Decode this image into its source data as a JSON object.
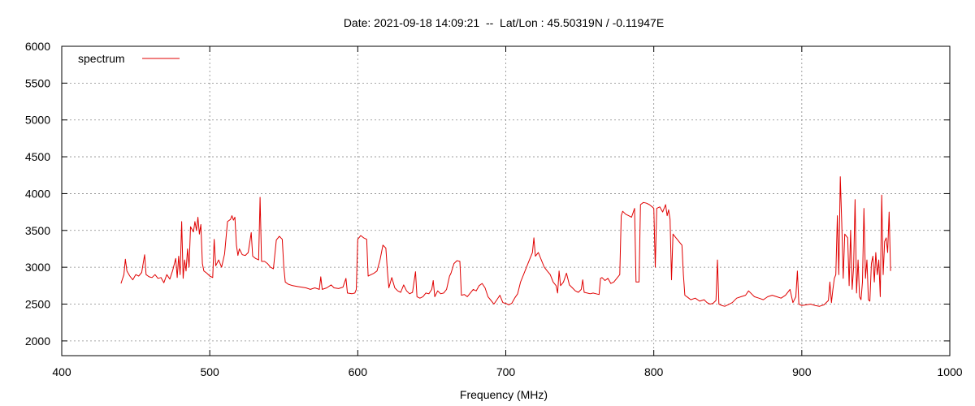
{
  "chart_data": {
    "type": "line",
    "title": "Date: 2021-09-18 14:09:21  --  Lat/Lon : 45.50319N / -0.11947E",
    "xlabel": "Frequency (MHz)",
    "ylabel": "",
    "xlim": [
      400,
      1000
    ],
    "ylim": [
      1800,
      6000
    ],
    "xticks": [
      400,
      500,
      600,
      700,
      800,
      900,
      1000
    ],
    "yticks": [
      2000,
      2500,
      3000,
      3500,
      4000,
      4500,
      5000,
      5500,
      6000
    ],
    "grid": true,
    "legend": "top-left",
    "series": [
      {
        "name": "spectrum",
        "color": "#e00000",
        "points": [
          [
            440,
            2780
          ],
          [
            442,
            2900
          ],
          [
            443,
            3110
          ],
          [
            444,
            2950
          ],
          [
            446,
            2880
          ],
          [
            448,
            2830
          ],
          [
            450,
            2900
          ],
          [
            452,
            2880
          ],
          [
            454,
            2930
          ],
          [
            456,
            3170
          ],
          [
            457,
            2900
          ],
          [
            459,
            2870
          ],
          [
            461,
            2860
          ],
          [
            463,
            2900
          ],
          [
            465,
            2850
          ],
          [
            467,
            2860
          ],
          [
            469,
            2790
          ],
          [
            471,
            2900
          ],
          [
            473,
            2840
          ],
          [
            475,
            2960
          ],
          [
            477,
            3120
          ],
          [
            478,
            2860
          ],
          [
            479,
            3150
          ],
          [
            480,
            2900
          ],
          [
            481,
            3620
          ],
          [
            482,
            2850
          ],
          [
            483,
            3100
          ],
          [
            484,
            2950
          ],
          [
            485,
            3250
          ],
          [
            486,
            3000
          ],
          [
            487,
            3550
          ],
          [
            489,
            3480
          ],
          [
            490,
            3620
          ],
          [
            491,
            3500
          ],
          [
            492,
            3680
          ],
          [
            493,
            3450
          ],
          [
            494,
            3580
          ],
          [
            495,
            3050
          ],
          [
            496,
            2950
          ],
          [
            498,
            2920
          ],
          [
            500,
            2880
          ],
          [
            502,
            2860
          ],
          [
            503,
            3380
          ],
          [
            504,
            3020
          ],
          [
            506,
            3100
          ],
          [
            508,
            3000
          ],
          [
            510,
            3180
          ],
          [
            511,
            3400
          ],
          [
            512,
            3620
          ],
          [
            514,
            3650
          ],
          [
            515,
            3700
          ],
          [
            516,
            3640
          ],
          [
            517,
            3680
          ],
          [
            518,
            3300
          ],
          [
            519,
            3160
          ],
          [
            520,
            3250
          ],
          [
            522,
            3170
          ],
          [
            524,
            3160
          ],
          [
            526,
            3200
          ],
          [
            528,
            3470
          ],
          [
            529,
            3150
          ],
          [
            531,
            3120
          ],
          [
            533,
            3100
          ],
          [
            534,
            3950
          ],
          [
            535,
            3080
          ],
          [
            537,
            3080
          ],
          [
            539,
            3050
          ],
          [
            541,
            3000
          ],
          [
            543,
            2980
          ],
          [
            545,
            3370
          ],
          [
            547,
            3420
          ],
          [
            549,
            3380
          ],
          [
            550,
            3000
          ],
          [
            551,
            2800
          ],
          [
            553,
            2770
          ],
          [
            556,
            2750
          ],
          [
            559,
            2740
          ],
          [
            562,
            2730
          ],
          [
            565,
            2720
          ],
          [
            568,
            2700
          ],
          [
            571,
            2720
          ],
          [
            574,
            2700
          ],
          [
            575,
            2870
          ],
          [
            576,
            2700
          ],
          [
            579,
            2720
          ],
          [
            582,
            2760
          ],
          [
            584,
            2720
          ],
          [
            587,
            2710
          ],
          [
            590,
            2730
          ],
          [
            592,
            2850
          ],
          [
            593,
            2650
          ],
          [
            596,
            2640
          ],
          [
            598,
            2650
          ],
          [
            599,
            2700
          ],
          [
            600,
            3380
          ],
          [
            602,
            3430
          ],
          [
            604,
            3400
          ],
          [
            606,
            3380
          ],
          [
            607,
            2880
          ],
          [
            609,
            2900
          ],
          [
            611,
            2920
          ],
          [
            613,
            2950
          ],
          [
            615,
            3100
          ],
          [
            616,
            3200
          ],
          [
            617,
            3300
          ],
          [
            619,
            3260
          ],
          [
            620,
            2950
          ],
          [
            621,
            2720
          ],
          [
            623,
            2860
          ],
          [
            625,
            2720
          ],
          [
            627,
            2680
          ],
          [
            629,
            2660
          ],
          [
            631,
            2760
          ],
          [
            633,
            2680
          ],
          [
            635,
            2640
          ],
          [
            637,
            2660
          ],
          [
            639,
            2940
          ],
          [
            640,
            2600
          ],
          [
            642,
            2580
          ],
          [
            644,
            2600
          ],
          [
            646,
            2650
          ],
          [
            648,
            2640
          ],
          [
            650,
            2700
          ],
          [
            651,
            2820
          ],
          [
            652,
            2600
          ],
          [
            654,
            2680
          ],
          [
            656,
            2640
          ],
          [
            658,
            2650
          ],
          [
            660,
            2700
          ],
          [
            662,
            2880
          ],
          [
            663,
            2920
          ],
          [
            665,
            3050
          ],
          [
            667,
            3090
          ],
          [
            669,
            3080
          ],
          [
            670,
            2620
          ],
          [
            672,
            2630
          ],
          [
            674,
            2600
          ],
          [
            676,
            2650
          ],
          [
            678,
            2700
          ],
          [
            680,
            2680
          ],
          [
            682,
            2750
          ],
          [
            684,
            2780
          ],
          [
            686,
            2720
          ],
          [
            688,
            2600
          ],
          [
            690,
            2550
          ],
          [
            692,
            2500
          ],
          [
            694,
            2560
          ],
          [
            696,
            2620
          ],
          [
            698,
            2520
          ],
          [
            700,
            2510
          ],
          [
            702,
            2490
          ],
          [
            704,
            2510
          ],
          [
            706,
            2580
          ],
          [
            708,
            2640
          ],
          [
            710,
            2800
          ],
          [
            712,
            2900
          ],
          [
            714,
            3000
          ],
          [
            716,
            3100
          ],
          [
            718,
            3200
          ],
          [
            719,
            3400
          ],
          [
            720,
            3150
          ],
          [
            722,
            3200
          ],
          [
            724,
            3100
          ],
          [
            726,
            3000
          ],
          [
            728,
            2950
          ],
          [
            730,
            2900
          ],
          [
            732,
            2800
          ],
          [
            734,
            2750
          ],
          [
            735,
            2650
          ],
          [
            736,
            2950
          ],
          [
            737,
            2750
          ],
          [
            739,
            2800
          ],
          [
            741,
            2920
          ],
          [
            743,
            2760
          ],
          [
            745,
            2720
          ],
          [
            747,
            2680
          ],
          [
            749,
            2660
          ],
          [
            751,
            2700
          ],
          [
            752,
            2830
          ],
          [
            753,
            2660
          ],
          [
            755,
            2650
          ],
          [
            757,
            2640
          ],
          [
            759,
            2650
          ],
          [
            761,
            2640
          ],
          [
            763,
            2630
          ],
          [
            764,
            2850
          ],
          [
            765,
            2860
          ],
          [
            767,
            2820
          ],
          [
            769,
            2850
          ],
          [
            771,
            2780
          ],
          [
            773,
            2800
          ],
          [
            775,
            2850
          ],
          [
            777,
            2900
          ],
          [
            778,
            3700
          ],
          [
            779,
            3760
          ],
          [
            781,
            3720
          ],
          [
            783,
            3700
          ],
          [
            785,
            3680
          ],
          [
            787,
            3800
          ],
          [
            788,
            2800
          ],
          [
            790,
            2800
          ],
          [
            791,
            3850
          ],
          [
            793,
            3880
          ],
          [
            795,
            3870
          ],
          [
            797,
            3850
          ],
          [
            799,
            3820
          ],
          [
            800,
            3800
          ],
          [
            801,
            3000
          ],
          [
            802,
            3800
          ],
          [
            804,
            3820
          ],
          [
            806,
            3750
          ],
          [
            808,
            3850
          ],
          [
            809,
            3700
          ],
          [
            810,
            3780
          ],
          [
            811,
            3650
          ],
          [
            812,
            2830
          ],
          [
            813,
            3450
          ],
          [
            815,
            3400
          ],
          [
            817,
            3350
          ],
          [
            819,
            3300
          ],
          [
            820,
            2900
          ],
          [
            821,
            2620
          ],
          [
            823,
            2590
          ],
          [
            825,
            2560
          ],
          [
            828,
            2580
          ],
          [
            831,
            2540
          ],
          [
            834,
            2560
          ],
          [
            836,
            2520
          ],
          [
            838,
            2500
          ],
          [
            840,
            2510
          ],
          [
            842,
            2550
          ],
          [
            843,
            3100
          ],
          [
            844,
            2500
          ],
          [
            846,
            2480
          ],
          [
            848,
            2470
          ],
          [
            850,
            2490
          ],
          [
            853,
            2520
          ],
          [
            856,
            2580
          ],
          [
            859,
            2600
          ],
          [
            862,
            2620
          ],
          [
            864,
            2680
          ],
          [
            866,
            2640
          ],
          [
            868,
            2600
          ],
          [
            871,
            2580
          ],
          [
            874,
            2560
          ],
          [
            877,
            2600
          ],
          [
            880,
            2620
          ],
          [
            883,
            2600
          ],
          [
            886,
            2580
          ],
          [
            889,
            2620
          ],
          [
            892,
            2700
          ],
          [
            894,
            2520
          ],
          [
            896,
            2600
          ],
          [
            897,
            2950
          ],
          [
            898,
            2500
          ],
          [
            900,
            2480
          ],
          [
            903,
            2490
          ],
          [
            906,
            2500
          ],
          [
            909,
            2480
          ],
          [
            912,
            2470
          ],
          [
            915,
            2490
          ],
          [
            918,
            2550
          ],
          [
            919,
            2800
          ],
          [
            920,
            2520
          ],
          [
            921,
            2700
          ],
          [
            922,
            2850
          ],
          [
            923,
            2900
          ],
          [
            924,
            3700
          ],
          [
            925,
            2900
          ],
          [
            926,
            4230
          ],
          [
            927,
            3600
          ],
          [
            928,
            2850
          ],
          [
            929,
            3450
          ],
          [
            931,
            3400
          ],
          [
            932,
            2750
          ],
          [
            933,
            3500
          ],
          [
            934,
            2700
          ],
          [
            935,
            3000
          ],
          [
            936,
            3920
          ],
          [
            937,
            2650
          ],
          [
            938,
            3100
          ],
          [
            939,
            2600
          ],
          [
            940,
            2560
          ],
          [
            941,
            2800
          ],
          [
            942,
            3800
          ],
          [
            943,
            2850
          ],
          [
            944,
            3100
          ],
          [
            945,
            2560
          ],
          [
            946,
            2540
          ],
          [
            947,
            3050
          ],
          [
            948,
            3150
          ],
          [
            949,
            2800
          ],
          [
            950,
            3200
          ],
          [
            951,
            2900
          ],
          [
            952,
            3100
          ],
          [
            953,
            2600
          ],
          [
            954,
            3980
          ],
          [
            955,
            2900
          ],
          [
            956,
            3350
          ],
          [
            957,
            3400
          ],
          [
            958,
            3200
          ],
          [
            959,
            3750
          ],
          [
            960,
            2950
          ]
        ]
      }
    ]
  }
}
